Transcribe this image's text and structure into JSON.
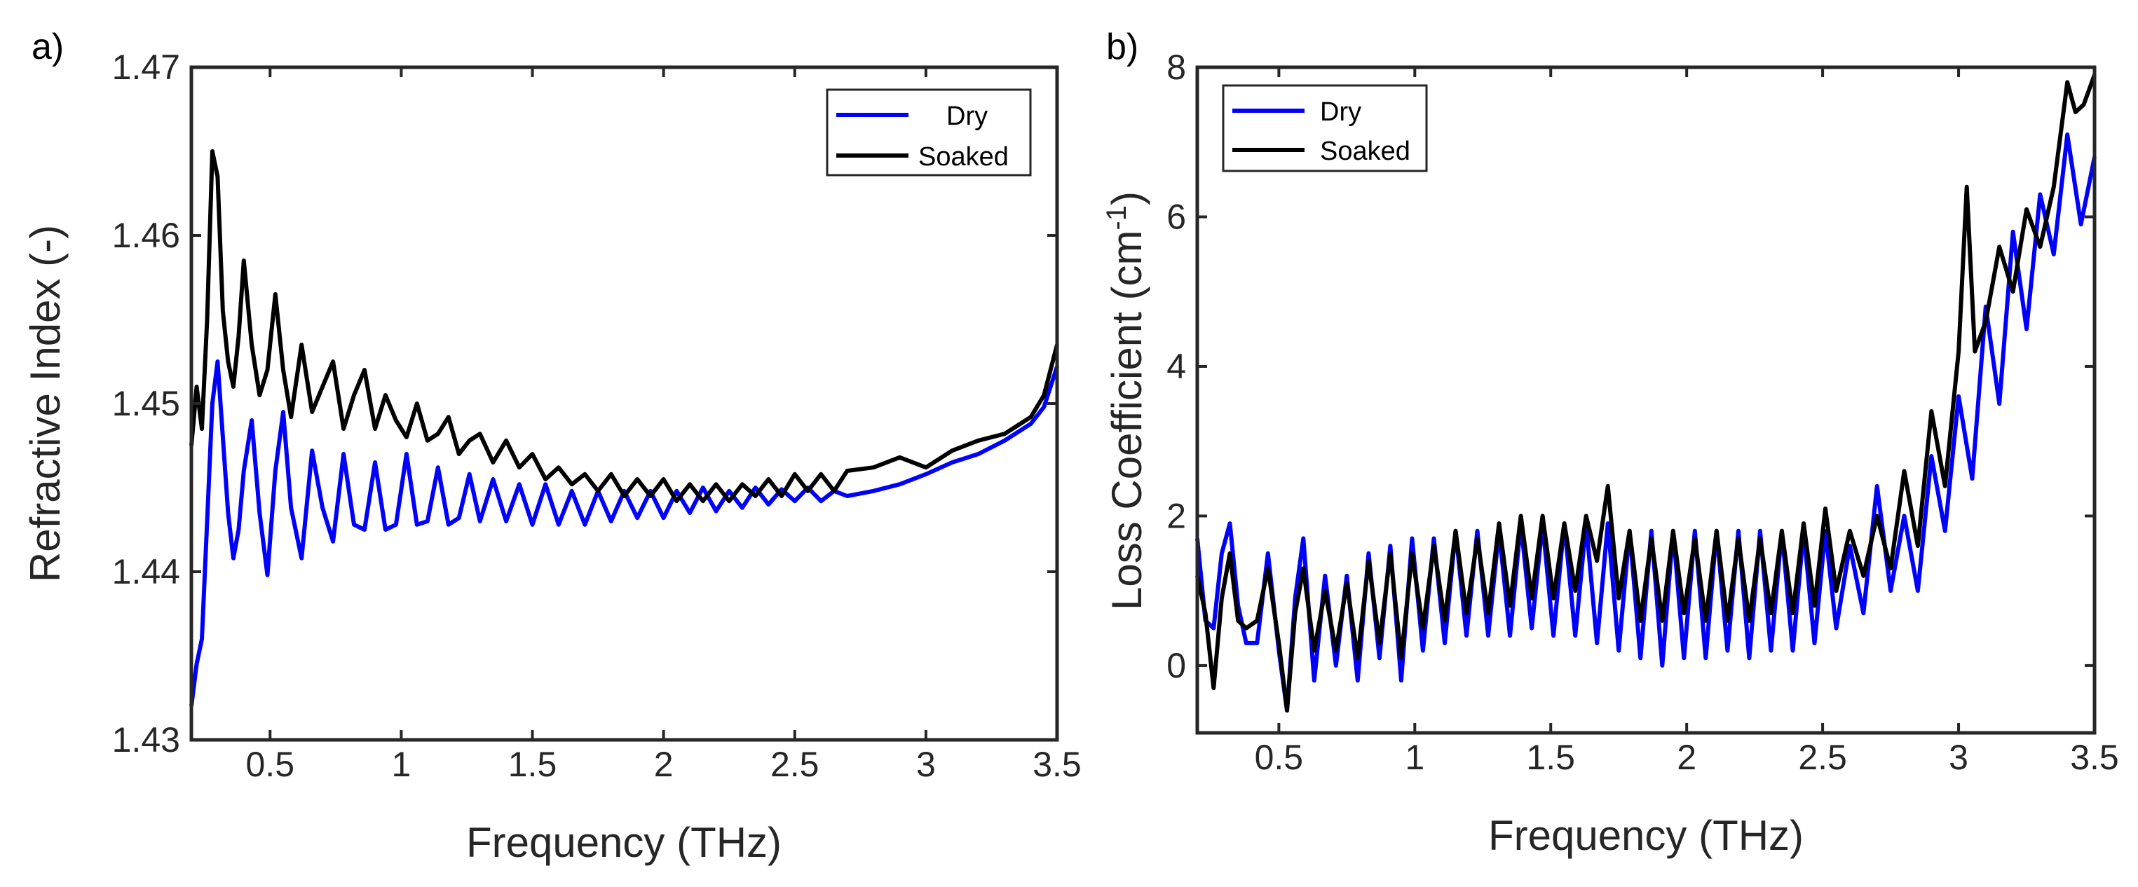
{
  "figure_title": "",
  "chart_data": [
    {
      "panel": "a)",
      "type": "line",
      "title": "",
      "xlabel": "Frequency (THz)",
      "ylabel": "Refractive Index (-)",
      "xlim": [
        0.2,
        3.5
      ],
      "ylim": [
        1.43,
        1.47
      ],
      "xticks": [
        "0.5",
        "1",
        "1.5",
        "2",
        "2.5",
        "3",
        "3.5"
      ],
      "xtick_values": [
        0.5,
        1,
        1.5,
        2,
        2.5,
        3,
        3.5
      ],
      "yticks": [
        "1.43",
        "1.44",
        "1.45",
        "1.46",
        "1.47"
      ],
      "ytick_values": [
        1.43,
        1.44,
        1.45,
        1.46,
        1.47
      ],
      "grid": false,
      "legend_position": "top-right",
      "series": [
        {
          "name": "Dry",
          "color": "#0000ff",
          "x": [
            0.2,
            0.22,
            0.24,
            0.26,
            0.28,
            0.3,
            0.32,
            0.34,
            0.36,
            0.38,
            0.4,
            0.43,
            0.46,
            0.49,
            0.52,
            0.55,
            0.58,
            0.62,
            0.66,
            0.7,
            0.74,
            0.78,
            0.82,
            0.86,
            0.9,
            0.94,
            0.98,
            1.02,
            1.06,
            1.1,
            1.14,
            1.18,
            1.22,
            1.26,
            1.3,
            1.35,
            1.4,
            1.45,
            1.5,
            1.55,
            1.6,
            1.65,
            1.7,
            1.75,
            1.8,
            1.85,
            1.9,
            1.95,
            2.0,
            2.05,
            2.1,
            2.15,
            2.2,
            2.25,
            2.3,
            2.35,
            2.4,
            2.45,
            2.5,
            2.55,
            2.6,
            2.65,
            2.7,
            2.8,
            2.9,
            3.0,
            3.1,
            3.2,
            3.3,
            3.4,
            3.45,
            3.5
          ],
          "y": [
            1.432,
            1.4345,
            1.436,
            1.443,
            1.45,
            1.4525,
            1.448,
            1.4435,
            1.4408,
            1.4425,
            1.446,
            1.449,
            1.4435,
            1.4398,
            1.446,
            1.4495,
            1.4438,
            1.4408,
            1.4472,
            1.4438,
            1.4418,
            1.447,
            1.4428,
            1.4425,
            1.4465,
            1.4425,
            1.4428,
            1.447,
            1.4428,
            1.443,
            1.4462,
            1.4428,
            1.4432,
            1.4458,
            1.443,
            1.4455,
            1.443,
            1.4452,
            1.4428,
            1.4452,
            1.4428,
            1.4448,
            1.4428,
            1.4448,
            1.443,
            1.4448,
            1.4432,
            1.4448,
            1.4432,
            1.4448,
            1.4435,
            1.445,
            1.4436,
            1.4448,
            1.4438,
            1.445,
            1.444,
            1.4449,
            1.4442,
            1.445,
            1.4442,
            1.4448,
            1.4445,
            1.4448,
            1.4452,
            1.4458,
            1.4465,
            1.447,
            1.4478,
            1.4488,
            1.4498,
            1.4522
          ]
        },
        {
          "name": "Soaked",
          "color": "#000000",
          "x": [
            0.2,
            0.22,
            0.24,
            0.26,
            0.28,
            0.3,
            0.32,
            0.34,
            0.36,
            0.38,
            0.4,
            0.43,
            0.46,
            0.49,
            0.52,
            0.55,
            0.58,
            0.62,
            0.66,
            0.7,
            0.74,
            0.78,
            0.82,
            0.86,
            0.9,
            0.94,
            0.98,
            1.02,
            1.06,
            1.1,
            1.14,
            1.18,
            1.22,
            1.26,
            1.3,
            1.35,
            1.4,
            1.45,
            1.5,
            1.55,
            1.6,
            1.65,
            1.7,
            1.75,
            1.8,
            1.85,
            1.9,
            1.95,
            2.0,
            2.05,
            2.1,
            2.15,
            2.2,
            2.25,
            2.3,
            2.35,
            2.4,
            2.45,
            2.5,
            2.55,
            2.6,
            2.65,
            2.7,
            2.8,
            2.9,
            3.0,
            3.1,
            3.2,
            3.3,
            3.4,
            3.45,
            3.5
          ],
          "y": [
            1.4475,
            1.451,
            1.4485,
            1.455,
            1.465,
            1.4635,
            1.4555,
            1.4525,
            1.451,
            1.454,
            1.4585,
            1.4535,
            1.4505,
            1.452,
            1.4565,
            1.452,
            1.4492,
            1.4535,
            1.4495,
            1.451,
            1.4525,
            1.4485,
            1.4505,
            1.452,
            1.4485,
            1.4505,
            1.449,
            1.448,
            1.45,
            1.4478,
            1.4482,
            1.4492,
            1.447,
            1.4478,
            1.4482,
            1.4465,
            1.4478,
            1.4462,
            1.447,
            1.4455,
            1.4462,
            1.4452,
            1.4458,
            1.4448,
            1.4458,
            1.4445,
            1.4455,
            1.4445,
            1.4455,
            1.4442,
            1.4452,
            1.4442,
            1.4452,
            1.4442,
            1.4452,
            1.4445,
            1.4455,
            1.4445,
            1.4458,
            1.4448,
            1.4458,
            1.4448,
            1.446,
            1.4462,
            1.4468,
            1.4462,
            1.4472,
            1.4478,
            1.4482,
            1.4492,
            1.4505,
            1.4535
          ]
        }
      ]
    },
    {
      "panel": "b)",
      "type": "line",
      "title": "",
      "xlabel": "Frequency (THz)",
      "ylabel": "Loss Coefficient (cm",
      "ylabel_superscript": "-1",
      "ylabel_suffix": ")",
      "xlim": [
        0.2,
        3.5
      ],
      "ylim": [
        -0.9,
        8
      ],
      "xticks": [
        "0.5",
        "1",
        "1.5",
        "2",
        "2.5",
        "3",
        "3.5"
      ],
      "xtick_values": [
        0.5,
        1,
        1.5,
        2,
        2.5,
        3,
        3.5
      ],
      "yticks": [
        "0",
        "2",
        "4",
        "6",
        "8"
      ],
      "ytick_values": [
        0,
        2,
        4,
        6,
        8
      ],
      "grid": false,
      "legend_position": "top-left",
      "series": [
        {
          "name": "Dry",
          "color": "#0000ff",
          "x": [
            0.2,
            0.23,
            0.26,
            0.29,
            0.32,
            0.35,
            0.38,
            0.42,
            0.46,
            0.5,
            0.53,
            0.56,
            0.59,
            0.63,
            0.67,
            0.71,
            0.75,
            0.79,
            0.83,
            0.87,
            0.91,
            0.95,
            0.99,
            1.03,
            1.07,
            1.11,
            1.15,
            1.19,
            1.23,
            1.27,
            1.31,
            1.35,
            1.39,
            1.43,
            1.47,
            1.51,
            1.55,
            1.59,
            1.63,
            1.67,
            1.71,
            1.75,
            1.79,
            1.83,
            1.87,
            1.91,
            1.95,
            1.99,
            2.03,
            2.07,
            2.11,
            2.15,
            2.19,
            2.23,
            2.27,
            2.31,
            2.35,
            2.39,
            2.43,
            2.47,
            2.51,
            2.55,
            2.6,
            2.65,
            2.7,
            2.75,
            2.8,
            2.85,
            2.9,
            2.95,
            3.0,
            3.05,
            3.1,
            3.15,
            3.2,
            3.25,
            3.3,
            3.35,
            3.4,
            3.45,
            3.5
          ],
          "y": [
            1.7,
            0.6,
            0.5,
            1.5,
            1.9,
            0.8,
            0.3,
            0.3,
            1.5,
            0.2,
            -0.6,
            0.9,
            1.7,
            -0.2,
            1.2,
            0.0,
            1.2,
            -0.2,
            1.5,
            0.1,
            1.6,
            -0.2,
            1.7,
            0.2,
            1.7,
            0.3,
            1.8,
            0.4,
            1.8,
            0.4,
            1.8,
            0.4,
            1.9,
            0.5,
            1.9,
            0.4,
            1.9,
            0.4,
            1.9,
            0.3,
            1.9,
            0.2,
            1.8,
            0.1,
            1.8,
            0.0,
            1.8,
            0.1,
            1.8,
            0.1,
            1.8,
            0.2,
            1.8,
            0.1,
            1.8,
            0.2,
            1.8,
            0.2,
            1.8,
            0.3,
            1.8,
            0.5,
            1.6,
            0.7,
            2.4,
            1.0,
            2.0,
            1.0,
            2.8,
            1.8,
            3.6,
            2.5,
            4.8,
            3.5,
            5.8,
            4.5,
            6.3,
            5.5,
            7.1,
            5.9,
            6.8
          ]
        },
        {
          "name": "Soaked",
          "color": "#000000",
          "x": [
            0.2,
            0.23,
            0.26,
            0.29,
            0.32,
            0.35,
            0.38,
            0.42,
            0.46,
            0.5,
            0.53,
            0.56,
            0.59,
            0.63,
            0.67,
            0.71,
            0.75,
            0.79,
            0.83,
            0.87,
            0.91,
            0.95,
            0.99,
            1.03,
            1.07,
            1.11,
            1.15,
            1.19,
            1.23,
            1.27,
            1.31,
            1.35,
            1.39,
            1.43,
            1.47,
            1.51,
            1.55,
            1.59,
            1.63,
            1.67,
            1.71,
            1.75,
            1.79,
            1.83,
            1.87,
            1.91,
            1.95,
            1.99,
            2.03,
            2.07,
            2.11,
            2.15,
            2.19,
            2.23,
            2.27,
            2.31,
            2.35,
            2.39,
            2.43,
            2.47,
            2.51,
            2.55,
            2.6,
            2.65,
            2.7,
            2.75,
            2.8,
            2.85,
            2.9,
            2.95,
            3.0,
            3.03,
            3.06,
            3.1,
            3.15,
            3.2,
            3.25,
            3.3,
            3.35,
            3.4,
            3.43,
            3.46,
            3.5
          ],
          "y": [
            1.2,
            0.7,
            -0.3,
            0.9,
            1.5,
            0.6,
            0.5,
            0.6,
            1.3,
            0.3,
            -0.6,
            0.7,
            1.3,
            0.2,
            1.0,
            0.2,
            1.1,
            0.1,
            1.4,
            0.3,
            1.5,
            0.1,
            1.5,
            0.5,
            1.6,
            0.6,
            1.8,
            0.7,
            1.7,
            0.7,
            1.9,
            0.8,
            2.0,
            0.9,
            2.0,
            0.9,
            1.9,
            1.0,
            2.0,
            1.4,
            2.4,
            0.9,
            1.8,
            0.6,
            1.7,
            0.6,
            1.8,
            0.7,
            1.7,
            0.6,
            1.8,
            0.6,
            1.7,
            0.6,
            1.7,
            0.7,
            1.8,
            0.7,
            1.9,
            0.8,
            2.1,
            1.0,
            1.8,
            1.2,
            2.0,
            1.3,
            2.6,
            1.6,
            3.4,
            2.4,
            4.2,
            6.4,
            4.2,
            4.6,
            5.6,
            5.0,
            6.1,
            5.6,
            6.4,
            7.8,
            7.4,
            7.5,
            7.9
          ]
        }
      ]
    }
  ]
}
